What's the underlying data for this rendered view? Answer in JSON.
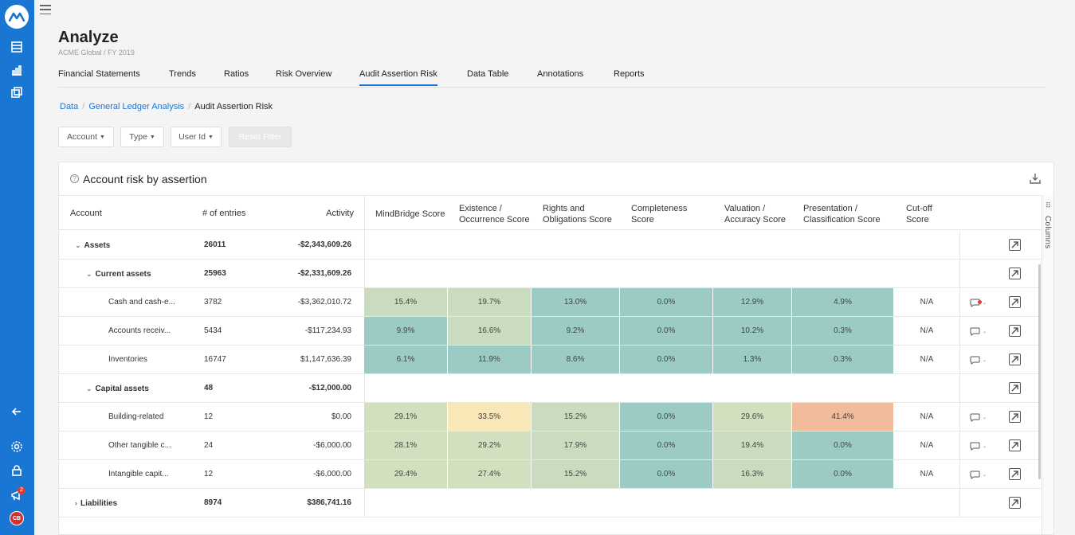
{
  "page": {
    "title": "Analyze",
    "subtitle": "ACME Global / FY 2019"
  },
  "nav": {
    "tabs": [
      "Financial Statements",
      "Trends",
      "Ratios",
      "Risk Overview",
      "Audit Assertion Risk",
      "Data Table",
      "Annotations",
      "Reports"
    ],
    "active": "Audit Assertion Risk"
  },
  "breadcrumb": {
    "items": [
      "Data",
      "General Ledger Analysis"
    ],
    "current": "Audit Assertion Risk"
  },
  "filters": {
    "account": "Account",
    "type": "Type",
    "user_id": "User Id",
    "reset": "Reset Filter"
  },
  "card": {
    "title": "Account risk by assertion",
    "help_glyph": "?"
  },
  "columns_panel": {
    "icon": "⠿",
    "label": "Columns"
  },
  "sidebar": {
    "badge_count": "2",
    "avatar_initials": "CB"
  },
  "table": {
    "headers": {
      "account": "Account",
      "entries": "# of entries",
      "activity": "Activity",
      "scores": [
        "MindBridge Score",
        "Existence / Occurrence Score",
        "Rights and Obligations Score",
        "Completeness Score",
        "Valuation / Accuracy Score",
        "Presentation / Classification Score",
        "Cut-off Score"
      ]
    },
    "rows": [
      {
        "account": "Assets",
        "chevron": "⌄",
        "entries": "26011",
        "activity": "-$2,343,609.26",
        "bold": true,
        "level": 0
      },
      {
        "account": "Current assets",
        "chevron": "⌄",
        "entries": "25963",
        "activity": "-$2,331,609.26",
        "bold": true,
        "level": 1
      },
      {
        "account": "Cash and cash-e...",
        "entries": "3782",
        "activity": "-$3,362,010.72",
        "level": 2,
        "scores": [
          "15.4%",
          "19.7%",
          "13.0%",
          "0.0%",
          "12.9%",
          "4.9%"
        ],
        "cutoff": "N/A",
        "comment_flag": true
      },
      {
        "account": "Accounts receiv...",
        "entries": "5434",
        "activity": "-$117,234.93",
        "level": 2,
        "scores": [
          "9.9%",
          "16.6%",
          "9.2%",
          "0.0%",
          "10.2%",
          "0.3%"
        ],
        "cutoff": "N/A"
      },
      {
        "account": "Inventories",
        "entries": "16747",
        "activity": "$1,147,636.39",
        "level": 2,
        "scores": [
          "6.1%",
          "11.9%",
          "8.6%",
          "0.0%",
          "1.3%",
          "0.3%"
        ],
        "cutoff": "N/A"
      },
      {
        "account": "Capital assets",
        "chevron": "⌄",
        "entries": "48",
        "activity": "-$12,000.00",
        "bold": true,
        "level": 1
      },
      {
        "account": "Building-related",
        "entries": "12",
        "activity": "$0.00",
        "level": 2,
        "scores": [
          "29.1%",
          "33.5%",
          "15.2%",
          "0.0%",
          "29.6%",
          "41.4%"
        ],
        "cutoff": "N/A"
      },
      {
        "account": "Other tangible c...",
        "entries": "24",
        "activity": "-$6,000.00",
        "level": 2,
        "scores": [
          "28.1%",
          "29.2%",
          "17.9%",
          "0.0%",
          "19.4%",
          "0.0%"
        ],
        "cutoff": "N/A"
      },
      {
        "account": "Intangible capit...",
        "entries": "12",
        "activity": "-$6,000.00",
        "level": 2,
        "scores": [
          "29.4%",
          "27.4%",
          "15.2%",
          "0.0%",
          "16.3%",
          "0.0%"
        ],
        "cutoff": "N/A"
      },
      {
        "account": "Liabilities",
        "chevron": "›",
        "entries": "8974",
        "activity": "$386,741.16",
        "bold": true,
        "level": 0
      }
    ]
  },
  "colors": {
    "accent": "#1976d2",
    "risk_low": "#9ccac4",
    "risk_lowmid": "#c9dcbf",
    "risk_mid": "#d3e0c0",
    "risk_elevated": "#fae7b8",
    "risk_high": "#f0bc9c"
  }
}
